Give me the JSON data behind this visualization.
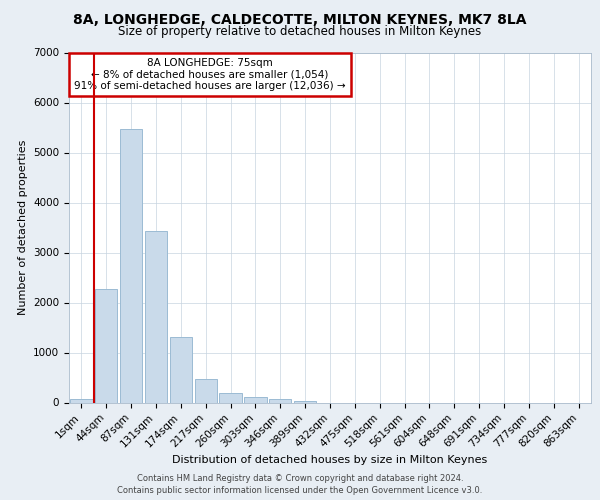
{
  "title": "8A, LONGHEDGE, CALDECOTTE, MILTON KEYNES, MK7 8LA",
  "subtitle": "Size of property relative to detached houses in Milton Keynes",
  "xlabel": "Distribution of detached houses by size in Milton Keynes",
  "ylabel": "Number of detached properties",
  "bar_color": "#c9daea",
  "bar_edge_color": "#9bbbd4",
  "annotation_box_color": "#ffffff",
  "annotation_box_edge_color": "#cc0000",
  "annotation_line1": "8A LONGHEDGE: 75sqm",
  "annotation_line2": "← 8% of detached houses are smaller (1,054)",
  "annotation_line3": "91% of semi-detached houses are larger (12,036) →",
  "footer": "Contains HM Land Registry data © Crown copyright and database right 2024.\nContains public sector information licensed under the Open Government Licence v3.0.",
  "categories": [
    "1sqm",
    "44sqm",
    "87sqm",
    "131sqm",
    "174sqm",
    "217sqm",
    "260sqm",
    "303sqm",
    "346sqm",
    "389sqm",
    "432sqm",
    "475sqm",
    "518sqm",
    "561sqm",
    "604sqm",
    "648sqm",
    "691sqm",
    "734sqm",
    "777sqm",
    "820sqm",
    "863sqm"
  ],
  "values": [
    70,
    2280,
    5480,
    3430,
    1310,
    470,
    195,
    115,
    65,
    35,
    0,
    0,
    0,
    0,
    0,
    0,
    0,
    0,
    0,
    0,
    0
  ],
  "ylim": [
    0,
    7000
  ],
  "yticks": [
    0,
    1000,
    2000,
    3000,
    4000,
    5000,
    6000,
    7000
  ],
  "highlight_line_index": 1,
  "background_color": "#e8eef4",
  "plot_bg_color": "#ffffff",
  "grid_color": "#c8d4e0",
  "red_line_color": "#cc0000",
  "title_fontsize": 10,
  "subtitle_fontsize": 8.5,
  "ylabel_fontsize": 8,
  "xlabel_fontsize": 8,
  "tick_fontsize": 7.5,
  "ann_fontsize": 7.5,
  "footer_fontsize": 6
}
